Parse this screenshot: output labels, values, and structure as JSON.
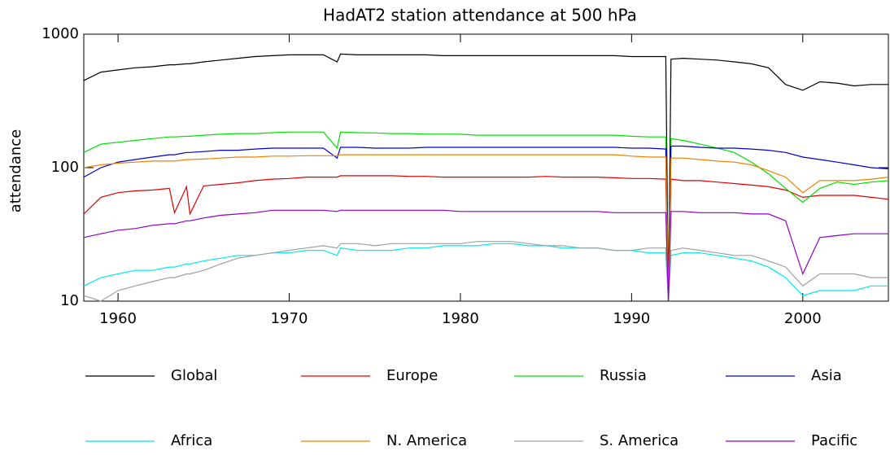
{
  "chart_data": {
    "type": "line",
    "title": "HadAT2 station attendance at 500 hPa",
    "y_label": "attendance",
    "x": [
      1958,
      1959,
      1960,
      1961,
      1962,
      1963,
      1963.3,
      1964,
      1964.2,
      1965,
      1966,
      1967,
      1968,
      1969,
      1970,
      1971,
      1972,
      1972.8,
      1973,
      1974,
      1975,
      1976,
      1977,
      1978,
      1979,
      1980,
      1981,
      1982,
      1983,
      1984,
      1985,
      1986,
      1987,
      1988,
      1989,
      1990,
      1991,
      1992,
      1992.15,
      1992.3,
      1993,
      1994,
      1995,
      1996,
      1997,
      1998,
      1999,
      2000,
      2001,
      2002,
      2003,
      2004,
      2005
    ],
    "series": [
      {
        "name": "Global",
        "color": "#000000",
        "values": [
          450,
          520,
          540,
          560,
          570,
          590,
          590,
          600,
          600,
          620,
          640,
          660,
          680,
          690,
          700,
          700,
          700,
          620,
          710,
          700,
          700,
          700,
          700,
          700,
          690,
          690,
          690,
          690,
          690,
          690,
          690,
          690,
          690,
          690,
          690,
          680,
          680,
          680,
          10,
          650,
          660,
          650,
          640,
          620,
          600,
          560,
          420,
          380,
          440,
          430,
          410,
          420,
          420
        ]
      },
      {
        "name": "Europe",
        "color": "#e00000",
        "values": [
          45,
          60,
          65,
          67,
          68,
          70,
          46,
          72,
          45,
          73,
          75,
          77,
          80,
          82,
          83,
          85,
          85,
          85,
          87,
          87,
          87,
          87,
          86,
          86,
          85,
          85,
          85,
          85,
          85,
          85,
          86,
          85,
          85,
          85,
          84,
          83,
          83,
          82,
          10,
          82,
          80,
          80,
          78,
          76,
          74,
          72,
          68,
          60,
          62,
          62,
          62,
          60,
          58
        ]
      },
      {
        "name": "Russia",
        "color": "#00e000",
        "values": [
          130,
          150,
          155,
          160,
          165,
          170,
          170,
          172,
          172,
          175,
          178,
          180,
          180,
          183,
          185,
          185,
          185,
          140,
          185,
          183,
          182,
          180,
          180,
          178,
          178,
          178,
          175,
          175,
          175,
          175,
          175,
          175,
          175,
          175,
          175,
          172,
          170,
          170,
          10,
          165,
          160,
          150,
          140,
          130,
          110,
          90,
          70,
          55,
          70,
          78,
          75,
          78,
          80
        ]
      },
      {
        "name": "Asia",
        "color": "#0000d0",
        "values": [
          85,
          100,
          110,
          115,
          120,
          125,
          125,
          130,
          130,
          132,
          135,
          135,
          138,
          140,
          140,
          140,
          140,
          118,
          142,
          142,
          140,
          140,
          140,
          142,
          142,
          142,
          142,
          142,
          142,
          142,
          142,
          142,
          142,
          142,
          142,
          140,
          140,
          138,
          10,
          145,
          145,
          142,
          140,
          140,
          138,
          135,
          130,
          120,
          115,
          110,
          105,
          100,
          98
        ]
      },
      {
        "name": "Africa",
        "color": "#00e8e8",
        "values": [
          13,
          15,
          16,
          17,
          17,
          18,
          18,
          19,
          19,
          20,
          21,
          22,
          22,
          23,
          23,
          24,
          24,
          22,
          25,
          24,
          24,
          24,
          25,
          25,
          26,
          26,
          26,
          27,
          27,
          26,
          26,
          25,
          25,
          25,
          24,
          24,
          23,
          23,
          10,
          22,
          23,
          23,
          22,
          21,
          20,
          18,
          15,
          11,
          12,
          12,
          12,
          13,
          13
        ]
      },
      {
        "name": "N. America",
        "color": "#f08000",
        "values": [
          100,
          105,
          108,
          110,
          112,
          112,
          112,
          115,
          115,
          116,
          118,
          120,
          120,
          122,
          122,
          123,
          123,
          123,
          125,
          125,
          125,
          125,
          125,
          125,
          125,
          125,
          125,
          125,
          125,
          125,
          125,
          125,
          125,
          125,
          125,
          122,
          120,
          120,
          10,
          118,
          118,
          115,
          112,
          110,
          105,
          95,
          85,
          65,
          80,
          80,
          80,
          82,
          85
        ]
      },
      {
        "name": "S. America",
        "color": "#a0a0a0",
        "values": [
          11,
          10,
          12,
          13,
          14,
          15,
          15,
          16,
          16,
          17,
          19,
          21,
          22,
          23,
          24,
          25,
          26,
          25,
          27,
          27,
          26,
          27,
          27,
          27,
          27,
          27,
          28,
          28,
          28,
          27,
          26,
          26,
          25,
          25,
          24,
          24,
          25,
          25,
          10,
          24,
          25,
          24,
          23,
          22,
          22,
          20,
          18,
          13,
          16,
          16,
          16,
          15,
          15
        ]
      },
      {
        "name": "Pacific",
        "color": "#9000c0",
        "values": [
          30,
          32,
          34,
          35,
          37,
          38,
          38,
          40,
          40,
          42,
          44,
          45,
          46,
          48,
          48,
          48,
          48,
          47,
          48,
          48,
          48,
          48,
          48,
          48,
          48,
          47,
          47,
          47,
          47,
          47,
          47,
          47,
          47,
          47,
          46,
          46,
          46,
          46,
          10,
          47,
          47,
          46,
          46,
          46,
          45,
          45,
          40,
          16,
          30,
          31,
          32,
          32,
          32
        ]
      }
    ],
    "xlim": [
      1958,
      2005
    ],
    "xticks": [
      1960,
      1970,
      1980,
      1990,
      2000
    ],
    "ylim": [
      10,
      1000
    ],
    "yticks": [
      10,
      100,
      1000
    ],
    "log_y": true,
    "legend": "bottom"
  }
}
